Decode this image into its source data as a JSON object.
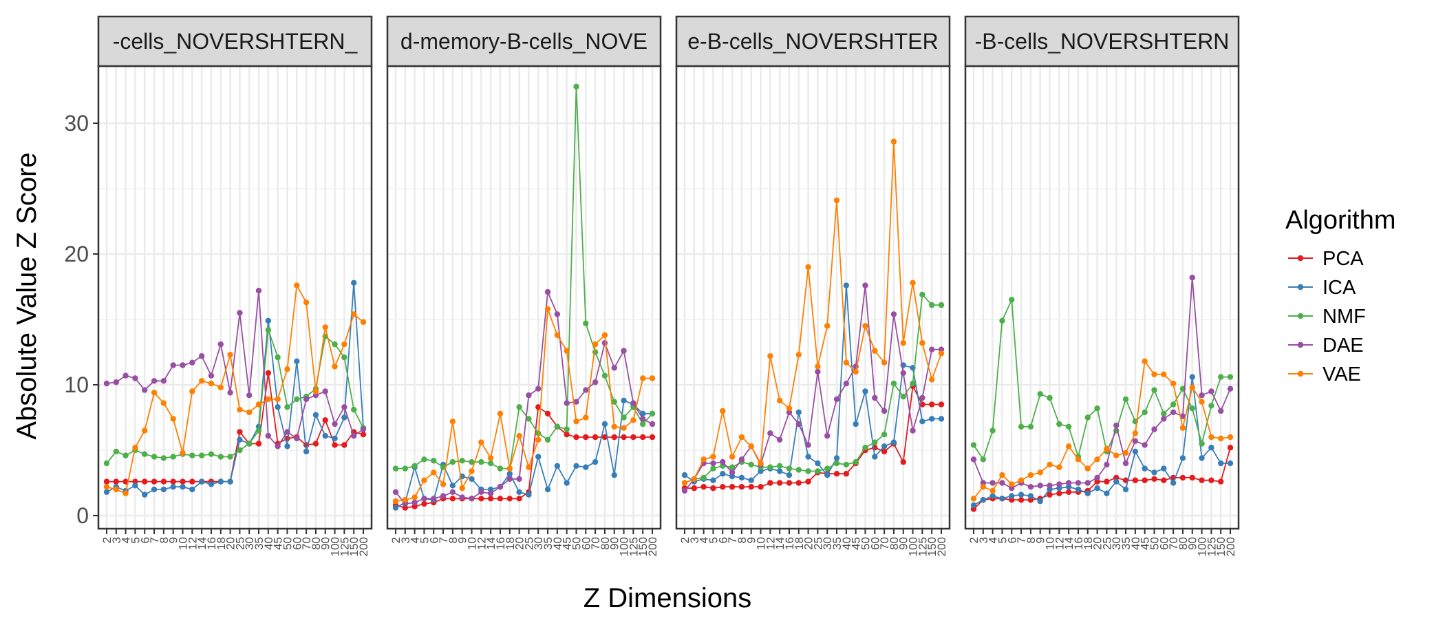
{
  "chart_data": {
    "type": "line",
    "xlabel": "Z Dimensions",
    "ylabel": "Absolute Value Z Score",
    "ylim": [
      -1,
      35
    ],
    "yticks": [
      0,
      10,
      20,
      30
    ],
    "grid": true,
    "legend": {
      "title": "Algorithm",
      "placement": "right"
    },
    "categories": [
      "2",
      "3",
      "4",
      "5",
      "6",
      "7",
      "8",
      "9",
      "10",
      "12",
      "14",
      "16",
      "18",
      "20",
      "25",
      "30",
      "35",
      "40",
      "45",
      "50",
      "60",
      "70",
      "80",
      "90",
      "100",
      "125",
      "150",
      "200"
    ],
    "series_names": [
      "PCA",
      "ICA",
      "NMF",
      "DAE",
      "VAE"
    ],
    "colors": {
      "PCA": "#e41a1c",
      "ICA": "#377eb8",
      "NMF": "#4daf4a",
      "DAE": "#984ea3",
      "VAE": "#ff7f00"
    },
    "panels": [
      {
        "strip": "-cells_NOVERSHTERN_",
        "series": [
          {
            "name": "PCA",
            "values": [
              2.6,
              2.6,
              2.6,
              2.6,
              2.6,
              2.6,
              2.6,
              2.6,
              2.6,
              2.6,
              2.6,
              2.6,
              2.6,
              2.6,
              6.4,
              5.5,
              5.5,
              10.9,
              5.5,
              5.9,
              6.0,
              5.4,
              5.5,
              7.3,
              5.4,
              5.4,
              6.4,
              6.2
            ]
          },
          {
            "name": "ICA",
            "values": [
              1.8,
              2.2,
              1.9,
              2.3,
              1.6,
              2.0,
              2.0,
              2.2,
              2.2,
              2.0,
              2.6,
              2.4,
              2.6,
              2.6,
              5.8,
              5.5,
              6.8,
              14.9,
              8.3,
              5.3,
              11.8,
              4.9,
              7.7,
              6.1,
              5.9,
              7.5,
              17.8,
              6.7
            ]
          },
          {
            "name": "NMF",
            "values": [
              4.0,
              4.9,
              4.6,
              5.0,
              4.7,
              4.5,
              4.4,
              4.5,
              4.7,
              4.6,
              4.6,
              4.7,
              4.5,
              4.5,
              5.0,
              5.5,
              6.5,
              14.2,
              12.1,
              8.3,
              8.9,
              9.1,
              9.7,
              13.7,
              13.1,
              12.1,
              8.1,
              6.7
            ]
          },
          {
            "name": "DAE",
            "values": [
              10.1,
              10.2,
              10.7,
              10.5,
              9.6,
              10.3,
              10.3,
              11.5,
              11.5,
              11.7,
              12.2,
              10.7,
              13.1,
              9.4,
              15.5,
              9.2,
              17.2,
              6.1,
              5.3,
              6.4,
              5.9,
              8.9,
              9.2,
              9.5,
              7.0,
              8.3,
              6.1,
              6.6
            ]
          },
          {
            "name": "VAE",
            "values": [
              2.2,
              2.0,
              1.7,
              5.2,
              6.5,
              9.4,
              8.6,
              7.4,
              4.8,
              9.5,
              10.3,
              10.1,
              9.8,
              12.3,
              8.1,
              7.9,
              8.5,
              8.9,
              8.9,
              11.2,
              17.6,
              16.3,
              9.5,
              14.4,
              11.4,
              13.1,
              15.4,
              14.8
            ]
          }
        ]
      },
      {
        "strip": "d-memory-B-cells_NOVE",
        "series": [
          {
            "name": "PCA",
            "values": [
              0.8,
              0.6,
              0.7,
              0.9,
              1.0,
              1.3,
              1.3,
              1.3,
              1.3,
              1.3,
              1.3,
              1.3,
              1.3,
              1.3,
              1.8,
              8.3,
              7.8,
              6.8,
              6.2,
              6.0,
              6.0,
              6.0,
              6.0,
              6.0,
              6.0,
              6.0,
              6.0,
              6.0
            ]
          },
          {
            "name": "ICA",
            "values": [
              0.6,
              1.0,
              3.7,
              1.3,
              1.2,
              3.9,
              2.3,
              3.0,
              2.8,
              2.0,
              2.0,
              2.2,
              3.2,
              1.8,
              1.6,
              4.5,
              2.0,
              3.8,
              2.5,
              3.8,
              3.7,
              4.1,
              7.0,
              3.1,
              8.8,
              8.5,
              7.8,
              7.8
            ]
          },
          {
            "name": "NMF",
            "values": [
              3.6,
              3.6,
              3.8,
              4.3,
              4.2,
              3.7,
              4.1,
              4.2,
              4.1,
              4.1,
              4.0,
              3.6,
              3.6,
              8.3,
              7.4,
              6.3,
              5.8,
              6.8,
              6.6,
              32.8,
              14.7,
              12.5,
              10.7,
              8.7,
              7.5,
              8.3,
              7.0,
              7.8
            ]
          },
          {
            "name": "DAE",
            "values": [
              1.8,
              0.9,
              1.0,
              1.3,
              1.3,
              1.5,
              1.8,
              1.4,
              1.3,
              1.8,
              1.7,
              2.2,
              2.8,
              2.8,
              9.2,
              9.7,
              17.1,
              15.4,
              8.6,
              8.7,
              9.6,
              10.2,
              13.2,
              11.3,
              12.6,
              8.6,
              7.4,
              7.0
            ]
          },
          {
            "name": "VAE",
            "values": [
              1.1,
              1.2,
              1.4,
              2.7,
              3.3,
              2.4,
              7.2,
              2.1,
              3.4,
              5.6,
              4.4,
              7.8,
              3.6,
              6.1,
              3.7,
              5.8,
              15.8,
              13.8,
              12.6,
              7.2,
              7.5,
              13.1,
              13.8,
              6.8,
              6.7,
              7.3,
              10.5,
              10.5
            ]
          }
        ]
      },
      {
        "strip": "e-B-cells_NOVERSHTER",
        "series": [
          {
            "name": "PCA",
            "values": [
              2.1,
              2.1,
              2.2,
              2.1,
              2.2,
              2.2,
              2.2,
              2.2,
              2.2,
              2.5,
              2.5,
              2.5,
              2.5,
              2.6,
              3.3,
              3.2,
              3.2,
              3.2,
              4.0,
              5.0,
              5.2,
              4.9,
              5.5,
              4.1,
              9.9,
              8.5,
              8.5,
              8.5
            ]
          },
          {
            "name": "ICA",
            "values": [
              3.1,
              2.6,
              2.8,
              2.7,
              3.2,
              3.0,
              2.9,
              2.7,
              3.4,
              3.6,
              3.4,
              3.1,
              7.9,
              4.5,
              4.0,
              3.1,
              4.4,
              17.6,
              7.0,
              9.5,
              4.5,
              5.3,
              5.6,
              11.5,
              11.3,
              7.2,
              7.4,
              7.4
            ]
          },
          {
            "name": "NMF",
            "values": [
              2.5,
              2.8,
              2.9,
              3.6,
              3.8,
              3.7,
              4.1,
              3.9,
              3.7,
              3.7,
              3.8,
              3.6,
              3.5,
              3.4,
              3.4,
              3.6,
              4.0,
              3.9,
              4.1,
              5.2,
              5.6,
              6.2,
              10.1,
              9.1,
              10.1,
              16.9,
              16.1,
              16.1
            ]
          },
          {
            "name": "DAE",
            "values": [
              1.9,
              2.8,
              4.0,
              4.0,
              4.1,
              3.3,
              4.3,
              5.3,
              3.9,
              6.3,
              5.8,
              7.9,
              7.0,
              5.4,
              11.0,
              6.1,
              8.9,
              10.1,
              11.4,
              17.6,
              9.0,
              8.0,
              15.4,
              10.9,
              6.5,
              9.0,
              12.7,
              12.7
            ]
          },
          {
            "name": "VAE",
            "values": [
              2.5,
              2.8,
              4.3,
              4.5,
              8.0,
              4.5,
              6.0,
              5.3,
              4.0,
              12.2,
              8.8,
              8.2,
              12.3,
              19.0,
              11.4,
              14.5,
              24.1,
              11.7,
              11.0,
              14.5,
              12.6,
              11.7,
              28.6,
              13.2,
              17.8,
              13.2,
              10.4,
              12.4
            ]
          }
        ]
      },
      {
        "strip": "-B-cells_NOVERSHTERN",
        "series": [
          {
            "name": "PCA",
            "values": [
              0.5,
              1.2,
              1.3,
              1.3,
              1.2,
              1.2,
              1.2,
              1.3,
              1.6,
              1.7,
              1.8,
              1.8,
              1.9,
              2.6,
              2.6,
              2.9,
              2.7,
              2.7,
              2.7,
              2.8,
              2.7,
              2.9,
              2.9,
              2.9,
              2.7,
              2.7,
              2.6,
              5.2
            ]
          },
          {
            "name": "ICA",
            "values": [
              0.8,
              1.2,
              1.5,
              1.3,
              1.5,
              1.6,
              1.5,
              1.1,
              2.0,
              2.1,
              2.2,
              2.0,
              1.7,
              2.1,
              1.7,
              2.6,
              2.0,
              4.9,
              3.6,
              3.3,
              3.6,
              2.5,
              4.4,
              10.6,
              4.4,
              5.2,
              4.0,
              4.0
            ]
          },
          {
            "name": "NMF",
            "values": [
              5.4,
              4.3,
              6.5,
              14.9,
              16.5,
              6.8,
              6.8,
              9.3,
              9.0,
              7.0,
              6.8,
              4.5,
              7.5,
              8.2,
              4.9,
              6.5,
              8.9,
              7.2,
              7.9,
              9.6,
              7.8,
              8.5,
              9.7,
              8.2,
              5.5,
              8.4,
              10.6,
              10.6
            ]
          },
          {
            "name": "DAE",
            "values": [
              4.3,
              2.5,
              2.5,
              2.5,
              2.1,
              2.5,
              2.2,
              2.3,
              2.3,
              2.4,
              2.5,
              2.5,
              2.5,
              2.9,
              3.9,
              6.9,
              4.0,
              5.7,
              5.4,
              6.6,
              7.4,
              7.9,
              7.6,
              18.2,
              9.2,
              9.5,
              8.0,
              9.7
            ]
          },
          {
            "name": "VAE",
            "values": [
              1.3,
              2.2,
              1.9,
              3.1,
              2.4,
              2.7,
              3.1,
              3.3,
              3.9,
              3.7,
              5.3,
              4.3,
              3.6,
              4.3,
              5.1,
              4.6,
              4.8,
              6.3,
              11.8,
              10.8,
              10.8,
              10.1,
              6.7,
              9.8,
              8.7,
              6.0,
              5.9,
              6.0
            ]
          }
        ]
      }
    ]
  }
}
